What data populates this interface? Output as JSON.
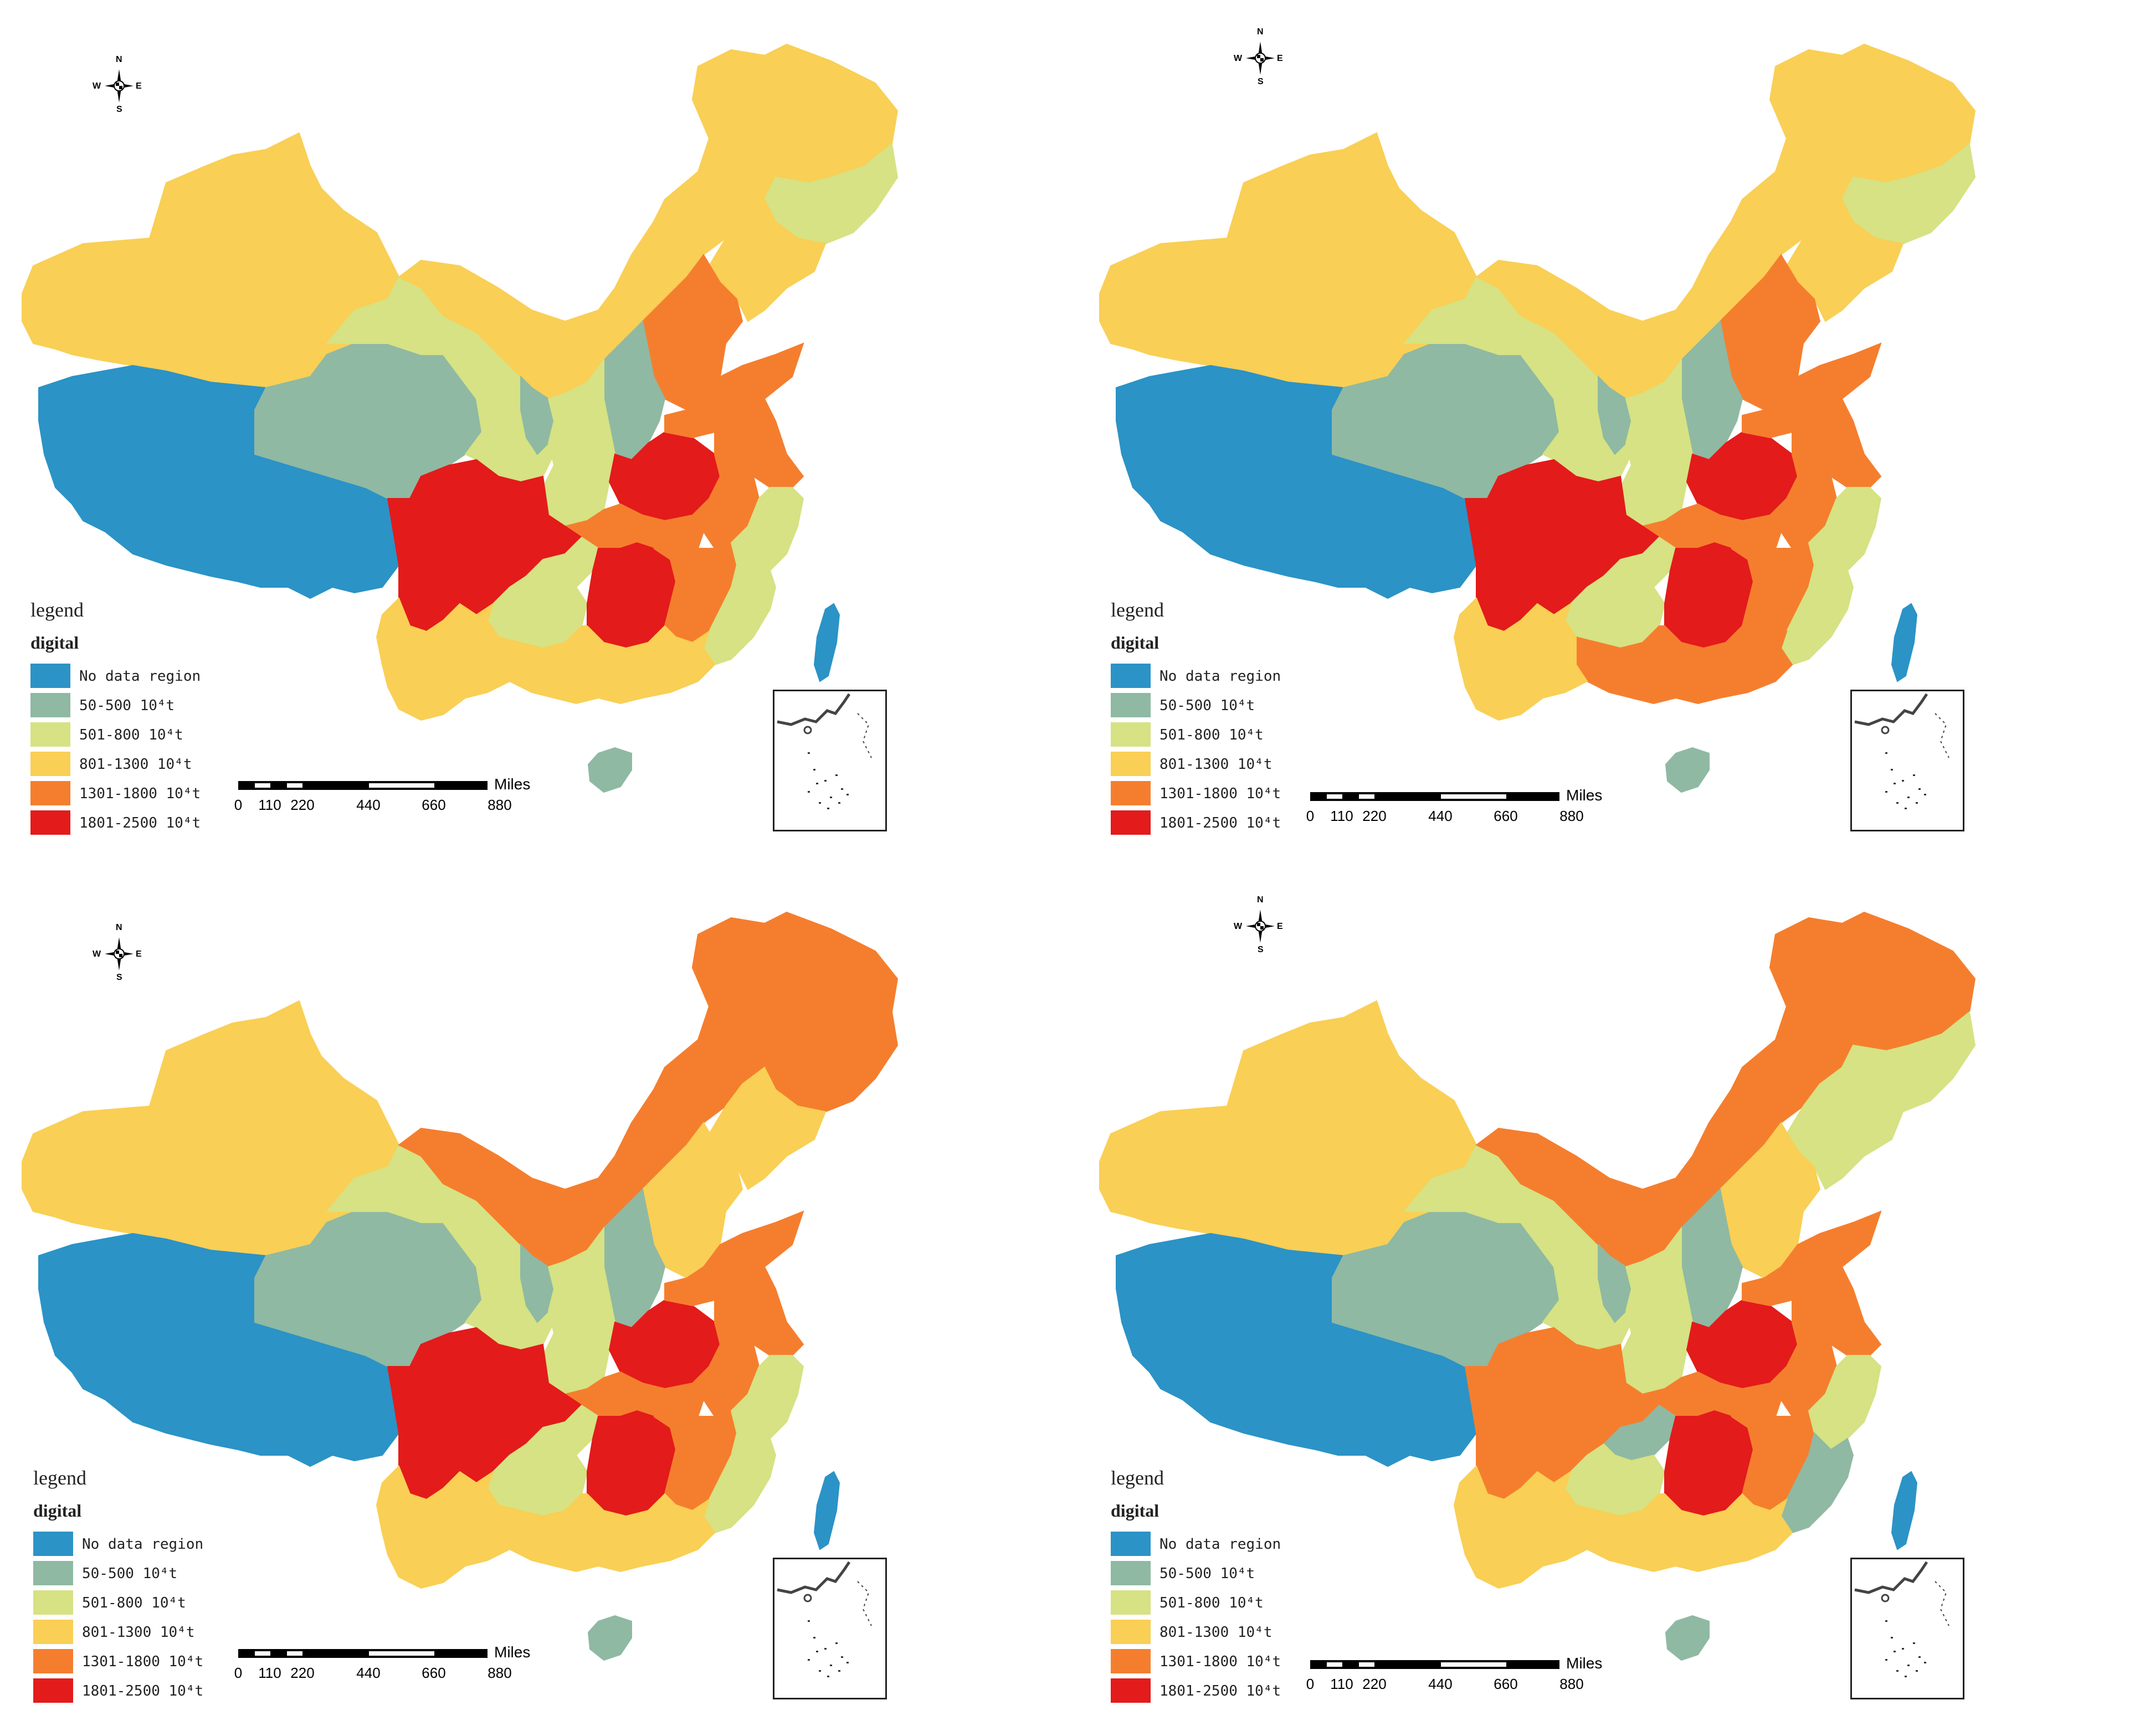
{
  "colors": {
    "no_data": "#2b93c6",
    "c50_500": "#8fb9a3",
    "c501_800": "#d6e283",
    "c801_1300": "#f9cf55",
    "c1301_1800": "#f57e2e",
    "c1801_2500": "#e31b1b"
  },
  "legend": {
    "title": "legend",
    "subtitle": "digital",
    "items": [
      {
        "label": "No data region",
        "color": "#2b93c6"
      },
      {
        "label": "50-500 10⁴t",
        "color": "#8fb9a3"
      },
      {
        "label": "501-800 10⁴t",
        "color": "#d6e283"
      },
      {
        "label": "801-1300 10⁴t",
        "color": "#f9cf55"
      },
      {
        "label": "1301-1800 10⁴t",
        "color": "#f57e2e"
      },
      {
        "label": "1801-2500 10⁴t",
        "color": "#e31b1b"
      }
    ]
  },
  "scale": {
    "unit": "Miles",
    "ticks": [
      "0",
      "110",
      "220",
      "440",
      "660",
      "880"
    ]
  },
  "compass": {
    "n": "N",
    "s": "S",
    "e": "E",
    "w": "W"
  },
  "maps": [
    {
      "id": "map-1",
      "regions": {
        "xinjiang": "c801_1300",
        "tibet": "no_data",
        "qinghai": "c50_500",
        "gansu": "c501_800",
        "inner_mongolia": "c801_1300",
        "heilongjiang": "c801_1300",
        "jilin": "c501_800",
        "liaoning": "c801_1300",
        "hebei": "c1301_1800",
        "shanxi": "c50_500",
        "shaanxi": "c501_800",
        "ningxia": "c50_500",
        "henan": "c1801_2500",
        "shandong": "c1301_1800",
        "jiangsu": "c1301_1800",
        "anhui": "c1301_1800",
        "hubei": "c1301_1800",
        "sichuan": "c1801_2500",
        "chongqing": "c501_800",
        "guizhou": "c501_800",
        "hunan": "c1801_2500",
        "jiangxi": "c1301_1800",
        "zhejiang": "c501_800",
        "fujian": "c501_800",
        "guangdong": "c801_1300",
        "guangxi": "c801_1300",
        "yunnan": "c801_1300",
        "hainan": "c50_500",
        "taiwan": "no_data"
      }
    },
    {
      "id": "map-2",
      "regions": {
        "xinjiang": "c801_1300",
        "tibet": "no_data",
        "qinghai": "c50_500",
        "gansu": "c501_800",
        "inner_mongolia": "c801_1300",
        "heilongjiang": "c801_1300",
        "jilin": "c501_800",
        "liaoning": "c801_1300",
        "hebei": "c1301_1800",
        "shanxi": "c50_500",
        "shaanxi": "c501_800",
        "ningxia": "c50_500",
        "henan": "c1801_2500",
        "shandong": "c1301_1800",
        "jiangsu": "c1301_1800",
        "anhui": "c1301_1800",
        "hubei": "c1301_1800",
        "sichuan": "c1801_2500",
        "chongqing": "c501_800",
        "guizhou": "c501_800",
        "hunan": "c1801_2500",
        "jiangxi": "c1301_1800",
        "zhejiang": "c501_800",
        "fujian": "c501_800",
        "guangdong": "c1301_1800",
        "guangxi": "c1301_1800",
        "yunnan": "c801_1300",
        "hainan": "c50_500",
        "taiwan": "no_data"
      }
    },
    {
      "id": "map-3",
      "regions": {
        "xinjiang": "c801_1300",
        "tibet": "no_data",
        "qinghai": "c50_500",
        "gansu": "c501_800",
        "inner_mongolia": "c1301_1800",
        "heilongjiang": "c1301_1800",
        "jilin": "c1301_1800",
        "liaoning": "c801_1300",
        "hebei": "c801_1300",
        "shanxi": "c50_500",
        "shaanxi": "c501_800",
        "ningxia": "c50_500",
        "henan": "c1801_2500",
        "shandong": "c1301_1800",
        "jiangsu": "c1301_1800",
        "anhui": "c1301_1800",
        "hubei": "c1301_1800",
        "sichuan": "c1801_2500",
        "chongqing": "c501_800",
        "guizhou": "c501_800",
        "hunan": "c1801_2500",
        "jiangxi": "c1301_1800",
        "zhejiang": "c501_800",
        "fujian": "c501_800",
        "guangdong": "c801_1300",
        "guangxi": "c801_1300",
        "yunnan": "c801_1300",
        "hainan": "c50_500",
        "taiwan": "no_data"
      }
    },
    {
      "id": "map-4",
      "regions": {
        "xinjiang": "c801_1300",
        "tibet": "no_data",
        "qinghai": "c50_500",
        "gansu": "c501_800",
        "inner_mongolia": "c1301_1800",
        "heilongjiang": "c1301_1800",
        "jilin": "c501_800",
        "liaoning": "c501_800",
        "hebei": "c801_1300",
        "shanxi": "c50_500",
        "shaanxi": "c501_800",
        "ningxia": "c50_500",
        "henan": "c1801_2500",
        "shandong": "c1301_1800",
        "jiangsu": "c1301_1800",
        "anhui": "c1301_1800",
        "hubei": "c1301_1800",
        "sichuan": "c1301_1800",
        "chongqing": "c50_500",
        "guizhou": "c501_800",
        "hunan": "c1801_2500",
        "jiangxi": "c1301_1800",
        "zhejiang": "c501_800",
        "fujian": "c50_500",
        "guangdong": "c801_1300",
        "guangxi": "c801_1300",
        "yunnan": "c801_1300",
        "hainan": "c50_500",
        "taiwan": "no_data"
      }
    }
  ]
}
